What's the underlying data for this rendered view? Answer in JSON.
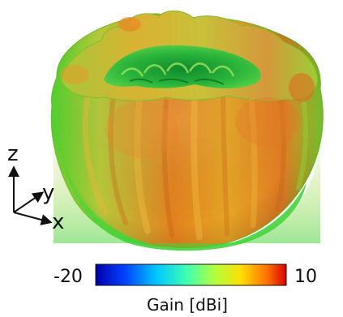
{
  "axes": {
    "z_label": "z",
    "y_label": "y",
    "x_label": "x"
  },
  "colorbar": {
    "min_label": "-20",
    "max_label": "10",
    "title": "Gain [dBi]",
    "min_value": -20,
    "max_value": 10,
    "colormap": "jet",
    "colors": [
      "#0000a8",
      "#0040ff",
      "#00c8ff",
      "#40ffb0",
      "#b0ff40",
      "#ffe000",
      "#ff7000",
      "#d80000"
    ]
  },
  "pattern": {
    "shape": "torus-like 3D radiation pattern",
    "colors": {
      "high": "#e8701c",
      "mid": "#d8c030",
      "low": "#3ed23c"
    }
  }
}
